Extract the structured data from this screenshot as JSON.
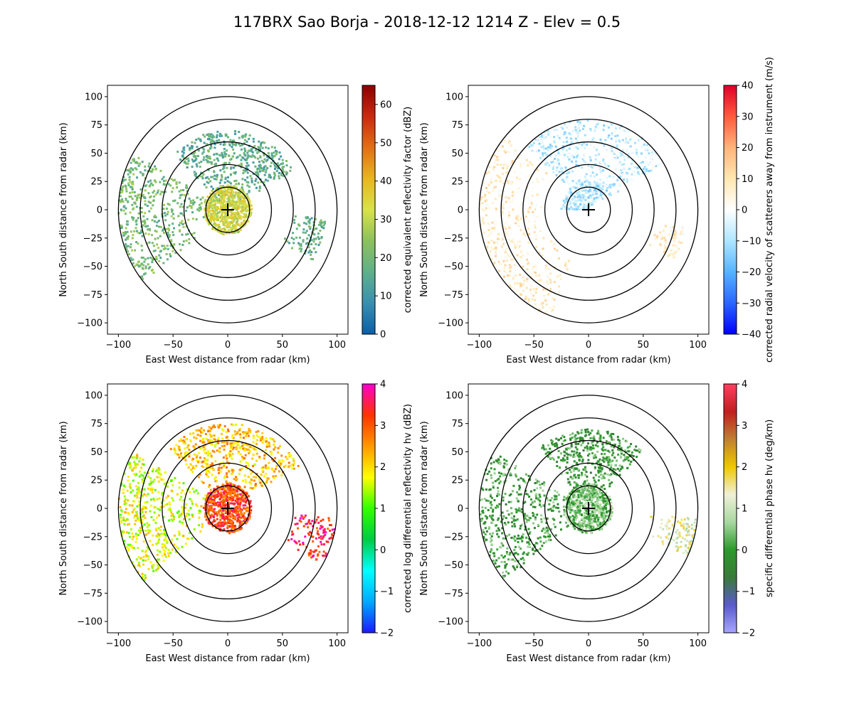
{
  "figure": {
    "title": "117BRX Sao Borja - 2018-12-12 1214 Z -  Elev = 0.5"
  },
  "chart_data": [
    {
      "type": "heatmap",
      "name": "reflectivity",
      "xlabel": "East West distance from radar (km)",
      "ylabel": "North South distance from radar (km)",
      "xlim": [
        -110,
        110
      ],
      "ylim": [
        -110,
        110
      ],
      "xticks": [
        -100,
        -50,
        0,
        50,
        100
      ],
      "yticks": [
        -100,
        -75,
        -50,
        -25,
        0,
        25,
        50,
        75,
        100
      ],
      "range_rings_km": [
        20,
        40,
        60,
        80,
        100
      ],
      "colorbar": {
        "label": "corrected equivalent reflectivity factor (dBZ)",
        "min": 0,
        "max": 65,
        "ticks": [
          0,
          10,
          20,
          30,
          40,
          50,
          60
        ],
        "colors": [
          "#0b5fa8",
          "#3a8fb0",
          "#5fb08a",
          "#8cc15e",
          "#d8e24a",
          "#e8b620",
          "#e07018",
          "#c82a10",
          "#8b0000"
        ]
      },
      "echoes": [
        {
          "region": "north",
          "azimuth_deg": [
            -45,
            60
          ],
          "range_km": [
            8,
            70
          ],
          "level": 0.25
        },
        {
          "region": "west_bands",
          "azimuth_deg": [
            -130,
            -60
          ],
          "range_km": [
            15,
            100
          ],
          "level": 0.32
        },
        {
          "region": "near_radar",
          "azimuth_deg": [
            0,
            360
          ],
          "range_km": [
            0,
            22
          ],
          "level": 0.5
        },
        {
          "region": "east",
          "azimuth_deg": [
            95,
            120
          ],
          "range_km": [
            55,
            90
          ],
          "level": 0.25
        }
      ]
    },
    {
      "type": "heatmap",
      "name": "velocity",
      "xlabel": "East West distance from radar (km)",
      "ylabel": "North South distance from radar (km)",
      "xlim": [
        -110,
        110
      ],
      "ylim": [
        -110,
        110
      ],
      "xticks": [
        -100,
        -50,
        0,
        50,
        100
      ],
      "yticks": [
        -100,
        -75,
        -50,
        -25,
        0,
        25,
        50,
        75,
        100
      ],
      "range_rings_km": [
        20,
        40,
        60,
        80,
        100
      ],
      "colorbar": {
        "label": "corrected radial velocity of scatterers away from instrument (m/s)",
        "min": -40,
        "max": 40,
        "ticks": [
          -40,
          -30,
          -20,
          -10,
          0,
          10,
          20,
          30,
          40
        ],
        "colors": [
          "#0000ff",
          "#2a66ff",
          "#55b4ff",
          "#aee6ff",
          "#ffffff",
          "#ffe7b0",
          "#ffb47a",
          "#ff5a3c",
          "#e0002a"
        ]
      },
      "echoes": [
        {
          "region": "north",
          "azimuth_deg": [
            -45,
            60
          ],
          "range_km": [
            8,
            80
          ],
          "level": 0.42
        },
        {
          "region": "west_arc",
          "azimuth_deg": [
            -160,
            -50
          ],
          "range_km": [
            40,
            100
          ],
          "level": 0.58
        },
        {
          "region": "near_radar",
          "azimuth_deg": [
            -90,
            45
          ],
          "range_km": [
            0,
            25
          ],
          "level": 0.4
        },
        {
          "region": "east",
          "azimuth_deg": [
            100,
            120
          ],
          "range_km": [
            60,
            90
          ],
          "level": 0.57
        }
      ]
    },
    {
      "type": "heatmap",
      "name": "differential_reflectivity",
      "xlabel": "East West distance from radar (km)",
      "ylabel": "North South distance from radar (km)",
      "xlim": [
        -110,
        110
      ],
      "ylim": [
        -110,
        110
      ],
      "xticks": [
        -100,
        -50,
        0,
        50,
        100
      ],
      "yticks": [
        -100,
        -75,
        -50,
        -25,
        0,
        25,
        50,
        75,
        100
      ],
      "range_rings_km": [
        20,
        40,
        60,
        80,
        100
      ],
      "colorbar": {
        "label": "corrected log differential reflectivity hv (dBZ)",
        "min": -2,
        "max": 4,
        "ticks": [
          -2,
          -1,
          0,
          1,
          2,
          3,
          4
        ],
        "colors": [
          "#1a1aff",
          "#00aaff",
          "#00ffff",
          "#00cc44",
          "#33ff00",
          "#ffff00",
          "#ff9900",
          "#ff3300",
          "#ff00cc"
        ]
      },
      "echoes": [
        {
          "region": "north",
          "azimuth_deg": [
            -45,
            60
          ],
          "range_km": [
            8,
            75
          ],
          "level": 0.7
        },
        {
          "region": "west_bands",
          "azimuth_deg": [
            -130,
            -60
          ],
          "range_km": [
            15,
            100
          ],
          "level": 0.62
        },
        {
          "region": "near_radar",
          "azimuth_deg": [
            0,
            360
          ],
          "range_km": [
            0,
            22
          ],
          "level": 0.85
        },
        {
          "region": "east",
          "azimuth_deg": [
            95,
            120
          ],
          "range_km": [
            55,
            100
          ],
          "level": 0.9
        }
      ]
    },
    {
      "type": "heatmap",
      "name": "specific_differential_phase",
      "xlabel": "East West distance from radar (km)",
      "ylabel": "North South distance from radar (km)",
      "xlim": [
        -110,
        110
      ],
      "ylim": [
        -110,
        110
      ],
      "xticks": [
        -100,
        -50,
        0,
        50,
        100
      ],
      "yticks": [
        -100,
        -75,
        -50,
        -25,
        0,
        25,
        50,
        75,
        100
      ],
      "range_rings_km": [
        20,
        40,
        60,
        80,
        100
      ],
      "colorbar": {
        "label": "specific differential phase hv (deg/km)",
        "min": -2,
        "max": 4,
        "ticks": [
          -2,
          -1,
          0,
          1,
          2,
          3,
          4
        ],
        "colors": [
          "#a6a6ff",
          "#5a5acc",
          "#3a7a3a",
          "#2a9a2a",
          "#a8d8a0",
          "#f0f0d8",
          "#f0c800",
          "#c08030",
          "#c02020",
          "#ff4060"
        ]
      },
      "echoes": [
        {
          "region": "north",
          "azimuth_deg": [
            -40,
            45
          ],
          "range_km": [
            8,
            70
          ],
          "level": 0.33
        },
        {
          "region": "west_bands",
          "azimuth_deg": [
            -130,
            -60
          ],
          "range_km": [
            15,
            100
          ],
          "level": 0.34
        },
        {
          "region": "near_radar",
          "azimuth_deg": [
            0,
            360
          ],
          "range_km": [
            0,
            22
          ],
          "level": 0.4
        },
        {
          "region": "east",
          "azimuth_deg": [
            95,
            115
          ],
          "range_km": [
            55,
            100
          ],
          "level": 0.55
        }
      ]
    }
  ]
}
